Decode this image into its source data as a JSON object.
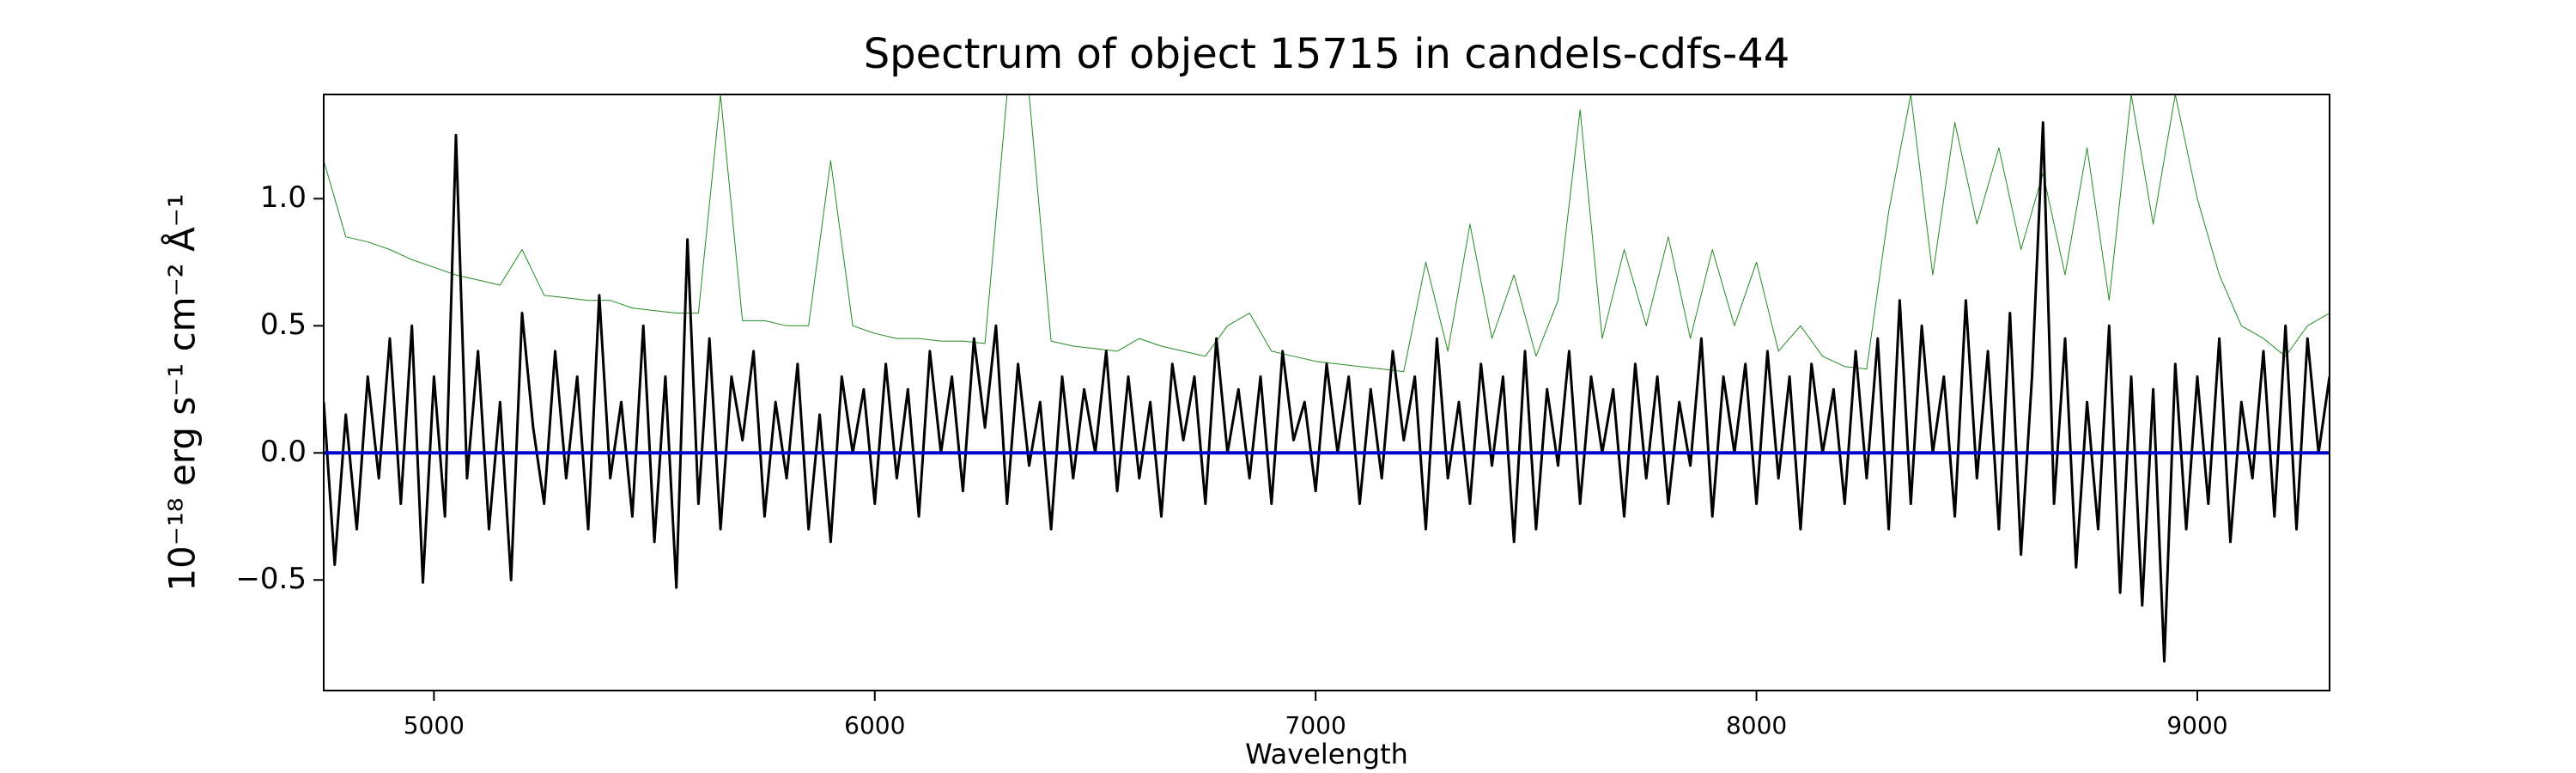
{
  "chart_data": {
    "type": "line",
    "title": "Spectrum of object 15715 in candels-cdfs-44",
    "xlabel": "Wavelength",
    "ylabel": "10⁻¹⁸ erg s⁻¹ cm⁻² Å⁻¹",
    "xlim": [
      4750,
      9300
    ],
    "ylim": [
      -0.935,
      1.41
    ],
    "xticks": [
      5000,
      6000,
      7000,
      8000,
      9000
    ],
    "yticks": [
      {
        "value": -0.5,
        "label": "−0.5"
      },
      {
        "value": 0,
        "label": "0.0"
      },
      0.5,
      {
        "value": 1,
        "label": "1.0"
      }
    ],
    "grid": false,
    "series": [
      {
        "color": "#228b22",
        "width": 1,
        "x": [
          4750,
          4800,
          4850,
          4900,
          4950,
          5000,
          5050,
          5100,
          5150,
          5200,
          5250,
          5300,
          5350,
          5400,
          5450,
          5500,
          5550,
          5600,
          5650,
          5700,
          5750,
          5800,
          5850,
          5900,
          5950,
          6000,
          6050,
          6100,
          6150,
          6200,
          6250,
          6300,
          6350,
          6400,
          6450,
          6500,
          6550,
          6600,
          6650,
          6700,
          6750,
          6800,
          6850,
          6900,
          6950,
          7000,
          7050,
          7100,
          7150,
          7200,
          7250,
          7300,
          7350,
          7400,
          7450,
          7500,
          7550,
          7600,
          7650,
          7700,
          7750,
          7800,
          7850,
          7900,
          7950,
          8000,
          8050,
          8100,
          8150,
          8200,
          8250,
          8300,
          8350,
          8400,
          8450,
          8500,
          8550,
          8600,
          8650,
          8700,
          8750,
          8800,
          8850,
          8900,
          8950,
          9000,
          9050,
          9100,
          9150,
          9200,
          9250,
          9300
        ],
        "values": [
          1.15,
          0.85,
          0.83,
          0.8,
          0.76,
          0.73,
          0.7,
          0.68,
          0.66,
          0.8,
          0.62,
          0.61,
          0.6,
          0.6,
          0.57,
          0.56,
          0.55,
          0.55,
          1.41,
          0.52,
          0.52,
          0.5,
          0.5,
          1.15,
          0.5,
          0.47,
          0.45,
          0.45,
          0.44,
          0.44,
          0.43,
          1.41,
          1.41,
          0.44,
          0.42,
          0.41,
          0.4,
          0.45,
          0.42,
          0.4,
          0.38,
          0.5,
          0.55,
          0.4,
          0.38,
          0.36,
          0.35,
          0.34,
          0.33,
          0.32,
          0.75,
          0.4,
          0.9,
          0.45,
          0.7,
          0.38,
          0.6,
          1.35,
          0.45,
          0.8,
          0.5,
          0.85,
          0.45,
          0.8,
          0.5,
          0.75,
          0.4,
          0.5,
          0.38,
          0.34,
          0.33,
          0.95,
          1.41,
          0.7,
          1.3,
          0.9,
          1.2,
          0.8,
          1.1,
          0.7,
          1.2,
          0.6,
          1.41,
          0.9,
          1.41,
          1.0,
          0.7,
          0.5,
          0.45,
          0.38,
          0.5,
          0.55
        ]
      },
      {
        "color": "#000000",
        "width": 3,
        "x": [
          4750,
          4775,
          4800,
          4825,
          4850,
          4875,
          4900,
          4925,
          4950,
          4975,
          5000,
          5025,
          5050,
          5075,
          5100,
          5125,
          5150,
          5175,
          5200,
          5225,
          5250,
          5275,
          5300,
          5325,
          5350,
          5375,
          5400,
          5425,
          5450,
          5475,
          5500,
          5525,
          5550,
          5575,
          5600,
          5625,
          5650,
          5675,
          5700,
          5725,
          5750,
          5775,
          5800,
          5825,
          5850,
          5875,
          5900,
          5925,
          5950,
          5975,
          6000,
          6025,
          6050,
          6075,
          6100,
          6125,
          6150,
          6175,
          6200,
          6225,
          6250,
          6275,
          6300,
          6325,
          6350,
          6375,
          6400,
          6425,
          6450,
          6475,
          6500,
          6525,
          6550,
          6575,
          6600,
          6625,
          6650,
          6675,
          6700,
          6725,
          6750,
          6775,
          6800,
          6825,
          6850,
          6875,
          6900,
          6925,
          6950,
          6975,
          7000,
          7025,
          7050,
          7075,
          7100,
          7125,
          7150,
          7175,
          7200,
          7225,
          7250,
          7275,
          7300,
          7325,
          7350,
          7375,
          7400,
          7425,
          7450,
          7475,
          7500,
          7525,
          7550,
          7575,
          7600,
          7625,
          7650,
          7675,
          7700,
          7725,
          7750,
          7775,
          7800,
          7825,
          7850,
          7875,
          7900,
          7925,
          7950,
          7975,
          8000,
          8025,
          8050,
          8075,
          8100,
          8125,
          8150,
          8175,
          8200,
          8225,
          8250,
          8275,
          8300,
          8325,
          8350,
          8375,
          8400,
          8425,
          8450,
          8475,
          8500,
          8525,
          8550,
          8575,
          8600,
          8625,
          8650,
          8675,
          8700,
          8725,
          8750,
          8775,
          8800,
          8825,
          8850,
          8875,
          8900,
          8925,
          8950,
          8975,
          9000,
          9025,
          9050,
          9075,
          9100,
          9125,
          9150,
          9175,
          9200,
          9225,
          9250,
          9275,
          9300
        ],
        "values": [
          0.2,
          -0.44,
          0.15,
          -0.3,
          0.3,
          -0.1,
          0.45,
          -0.2,
          0.5,
          -0.51,
          0.3,
          -0.25,
          1.25,
          -0.1,
          0.4,
          -0.3,
          0.2,
          -0.5,
          0.55,
          0.1,
          -0.2,
          0.4,
          -0.1,
          0.3,
          -0.3,
          0.62,
          -0.1,
          0.2,
          -0.25,
          0.5,
          -0.35,
          0.3,
          -0.53,
          0.84,
          -0.2,
          0.45,
          -0.3,
          0.3,
          0.05,
          0.4,
          -0.25,
          0.2,
          -0.1,
          0.35,
          -0.3,
          0.15,
          -0.35,
          0.3,
          0.0,
          0.25,
          -0.2,
          0.35,
          -0.1,
          0.25,
          -0.25,
          0.4,
          0.0,
          0.3,
          -0.15,
          0.45,
          0.1,
          0.5,
          -0.2,
          0.35,
          -0.05,
          0.2,
          -0.3,
          0.3,
          -0.1,
          0.25,
          0.0,
          0.4,
          -0.15,
          0.3,
          -0.1,
          0.2,
          -0.25,
          0.35,
          0.05,
          0.3,
          -0.2,
          0.45,
          0.0,
          0.25,
          -0.1,
          0.3,
          -0.2,
          0.4,
          0.05,
          0.2,
          -0.15,
          0.35,
          0.0,
          0.3,
          -0.2,
          0.25,
          -0.1,
          0.4,
          0.05,
          0.3,
          -0.3,
          0.45,
          -0.1,
          0.2,
          -0.2,
          0.35,
          -0.05,
          0.3,
          -0.35,
          0.4,
          -0.3,
          0.25,
          -0.05,
          0.4,
          -0.2,
          0.3,
          0.0,
          0.25,
          -0.25,
          0.35,
          -0.1,
          0.3,
          -0.2,
          0.2,
          -0.05,
          0.45,
          -0.25,
          0.3,
          0.0,
          0.35,
          -0.2,
          0.4,
          -0.1,
          0.3,
          -0.3,
          0.35,
          0.0,
          0.25,
          -0.2,
          0.4,
          -0.1,
          0.45,
          -0.3,
          0.6,
          -0.2,
          0.5,
          0.0,
          0.3,
          -0.25,
          0.6,
          -0.1,
          0.4,
          -0.3,
          0.55,
          -0.4,
          0.3,
          1.3,
          -0.2,
          0.45,
          -0.45,
          0.2,
          -0.3,
          0.5,
          -0.55,
          0.3,
          -0.6,
          0.25,
          -0.82,
          0.35,
          -0.3,
          0.3,
          -0.2,
          0.45,
          -0.35,
          0.2,
          -0.1,
          0.4,
          -0.25,
          0.5,
          -0.3,
          0.45,
          0.0,
          0.3
        ]
      },
      {
        "color": "#0000cc",
        "width": 4,
        "x": [
          4750,
          9300
        ],
        "values": [
          0,
          0
        ]
      }
    ]
  }
}
